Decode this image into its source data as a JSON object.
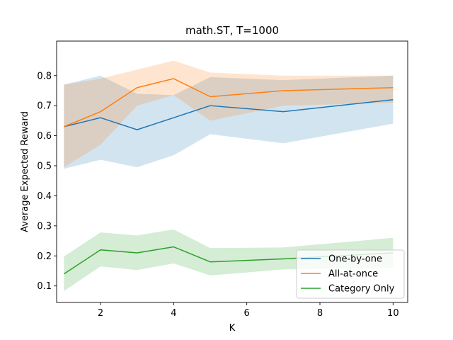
{
  "chart_data": {
    "type": "line",
    "title": "math.ST, T=1000",
    "xlabel": "K",
    "ylabel": "Average Expected Reward",
    "xlim": [
      0.8,
      10.4
    ],
    "ylim": [
      0.045,
      0.915
    ],
    "xticks": [
      2,
      4,
      6,
      8,
      10
    ],
    "yticks": [
      0.1,
      0.2,
      0.3,
      0.4,
      0.5,
      0.6,
      0.7,
      0.8
    ],
    "legend_position": "lower-right",
    "grid": false,
    "series": [
      {
        "name": "One-by-one",
        "color": "#1f77b4",
        "x": [
          1,
          2,
          3,
          4,
          5,
          7,
          10
        ],
        "y": [
          0.63,
          0.66,
          0.62,
          0.66,
          0.7,
          0.68,
          0.72
        ],
        "lower": [
          0.49,
          0.52,
          0.495,
          0.535,
          0.605,
          0.575,
          0.64
        ],
        "upper": [
          0.77,
          0.8,
          0.74,
          0.735,
          0.795,
          0.785,
          0.8
        ]
      },
      {
        "name": "All-at-once",
        "color": "#ff7f0e",
        "x": [
          1,
          2,
          3,
          4,
          5,
          7,
          10
        ],
        "y": [
          0.63,
          0.68,
          0.76,
          0.79,
          0.73,
          0.75,
          0.76
        ],
        "lower": [
          0.495,
          0.57,
          0.7,
          0.735,
          0.65,
          0.7,
          0.71
        ],
        "upper": [
          0.77,
          0.79,
          0.82,
          0.85,
          0.81,
          0.8,
          0.8
        ]
      },
      {
        "name": "Category Only",
        "color": "#2ca02c",
        "x": [
          1,
          2,
          3,
          4,
          5,
          7,
          10
        ],
        "y": [
          0.14,
          0.22,
          0.21,
          0.23,
          0.18,
          0.19,
          0.21
        ],
        "lower": [
          0.083,
          0.165,
          0.153,
          0.175,
          0.135,
          0.155,
          0.16
        ],
        "upper": [
          0.198,
          0.278,
          0.268,
          0.288,
          0.226,
          0.228,
          0.26
        ]
      }
    ]
  }
}
